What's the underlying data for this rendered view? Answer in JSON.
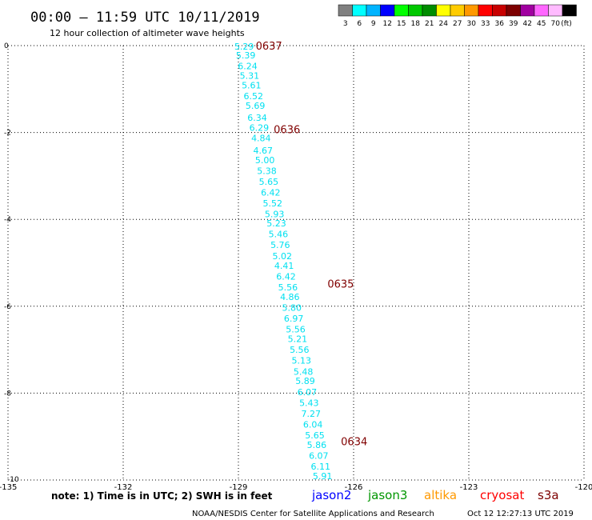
{
  "header": {
    "title": "00:00 – 11:59 UTC 10/11/2019",
    "subtitle": "12 hour collection of altimeter wave heights"
  },
  "colorbar": {
    "unit": "(ft)",
    "bins": [
      {
        "color": "#808080",
        "label": "3"
      },
      {
        "color": "#00ffff",
        "label": "6"
      },
      {
        "color": "#00b4ff",
        "label": "9"
      },
      {
        "color": "#0000ff",
        "label": "12"
      },
      {
        "color": "#00ff00",
        "label": "15"
      },
      {
        "color": "#00c800",
        "label": "18"
      },
      {
        "color": "#008c00",
        "label": "21"
      },
      {
        "color": "#ffff00",
        "label": "24"
      },
      {
        "color": "#ffcc00",
        "label": "27"
      },
      {
        "color": "#ff9900",
        "label": "30"
      },
      {
        "color": "#ff0000",
        "label": "33"
      },
      {
        "color": "#c80000",
        "label": "36"
      },
      {
        "color": "#7d0000",
        "label": "39"
      },
      {
        "color": "#a000a0",
        "label": "42"
      },
      {
        "color": "#ff66ff",
        "label": "45"
      },
      {
        "color": "#ffbbff",
        "label": "70"
      },
      {
        "color": "#000000",
        "label": ""
      }
    ]
  },
  "footer": {
    "note": "note: 1) Time is in UTC; 2) SWH is in feet",
    "credit": "NOAA/NESDIS Center for Satellite Applications and Research",
    "timestamp": "Oct 12 12:27:13 UTC 2019",
    "satellites": [
      {
        "name": "jason2",
        "color": "#0000ff"
      },
      {
        "name": "jason3",
        "color": "#009600"
      },
      {
        "name": "altika",
        "color": "#ff9900"
      },
      {
        "name": "cryosat",
        "color": "#ff0000"
      },
      {
        "name": "s3a",
        "color": "#7d0000"
      }
    ]
  },
  "chart_data": {
    "type": "scatter",
    "xlim": [
      -135,
      -120
    ],
    "ylim": [
      -10,
      0
    ],
    "xticks": [
      -135,
      -132,
      -129,
      -126,
      -123,
      -120
    ],
    "yticks": [
      0,
      -2,
      -4,
      -6,
      -8,
      -10
    ],
    "grid": true,
    "series": [
      {
        "name": "s3a",
        "color": "#00e0f0",
        "points": [
          {
            "x": -128.85,
            "y": -0.02,
            "label": "5.29"
          },
          {
            "x": -128.81,
            "y": -0.22,
            "label": "5.39"
          },
          {
            "x": -128.76,
            "y": -0.47,
            "label": "6.24"
          },
          {
            "x": -128.71,
            "y": -0.69,
            "label": "5.31"
          },
          {
            "x": -128.66,
            "y": -0.91,
            "label": "5.61"
          },
          {
            "x": -128.61,
            "y": -1.16,
            "label": "6.52"
          },
          {
            "x": -128.56,
            "y": -1.38,
            "label": "5.69"
          },
          {
            "x": -128.51,
            "y": -1.66,
            "label": "6.34"
          },
          {
            "x": -128.46,
            "y": -1.89,
            "label": "6.29"
          },
          {
            "x": -128.41,
            "y": -2.13,
            "label": "4.84"
          },
          {
            "x": -128.36,
            "y": -2.41,
            "label": "4.67"
          },
          {
            "x": -128.31,
            "y": -2.63,
            "label": "5.00"
          },
          {
            "x": -128.26,
            "y": -2.88,
            "label": "5.38"
          },
          {
            "x": -128.21,
            "y": -3.13,
            "label": "5.65"
          },
          {
            "x": -128.16,
            "y": -3.38,
            "label": "6.42"
          },
          {
            "x": -128.11,
            "y": -3.63,
            "label": "5.52"
          },
          {
            "x": -128.06,
            "y": -3.88,
            "label": "5.93"
          },
          {
            "x": -128.01,
            "y": -4.09,
            "label": "5.23"
          },
          {
            "x": -127.96,
            "y": -4.34,
            "label": "5.46"
          },
          {
            "x": -127.91,
            "y": -4.59,
            "label": "5.76"
          },
          {
            "x": -127.86,
            "y": -4.84,
            "label": "5.02"
          },
          {
            "x": -127.81,
            "y": -5.06,
            "label": "4.41"
          },
          {
            "x": -127.76,
            "y": -5.31,
            "label": "6.42"
          },
          {
            "x": -127.71,
            "y": -5.56,
            "label": "5.56"
          },
          {
            "x": -127.66,
            "y": -5.78,
            "label": "4.86"
          },
          {
            "x": -127.61,
            "y": -6.03,
            "label": "5.80"
          },
          {
            "x": -127.56,
            "y": -6.28,
            "label": "6.97"
          },
          {
            "x": -127.51,
            "y": -6.53,
            "label": "5.56"
          },
          {
            "x": -127.46,
            "y": -6.75,
            "label": "5.21"
          },
          {
            "x": -127.41,
            "y": -7.0,
            "label": "5.56"
          },
          {
            "x": -127.36,
            "y": -7.25,
            "label": "5.13"
          },
          {
            "x": -127.31,
            "y": -7.5,
            "label": "5.48"
          },
          {
            "x": -127.26,
            "y": -7.72,
            "label": "5.89"
          },
          {
            "x": -127.21,
            "y": -7.97,
            "label": "6.07"
          },
          {
            "x": -127.16,
            "y": -8.22,
            "label": "5.43"
          },
          {
            "x": -127.11,
            "y": -8.47,
            "label": "7.27"
          },
          {
            "x": -127.06,
            "y": -8.72,
            "label": "6.04"
          },
          {
            "x": -127.01,
            "y": -8.97,
            "label": "5.65"
          },
          {
            "x": -126.96,
            "y": -9.19,
            "label": "5.86"
          },
          {
            "x": -126.91,
            "y": -9.44,
            "label": "6.07"
          },
          {
            "x": -126.86,
            "y": -9.69,
            "label": "6.11"
          },
          {
            "x": -126.81,
            "y": -9.91,
            "label": "5.91"
          }
        ]
      }
    ],
    "time_labels": [
      {
        "x": -128.55,
        "y": 0.0,
        "text": "0637"
      },
      {
        "x": -128.08,
        "y": -1.92,
        "text": "0636"
      },
      {
        "x": -126.68,
        "y": -5.48,
        "text": "0635"
      },
      {
        "x": -126.33,
        "y": -9.11,
        "text": "0634"
      }
    ]
  }
}
